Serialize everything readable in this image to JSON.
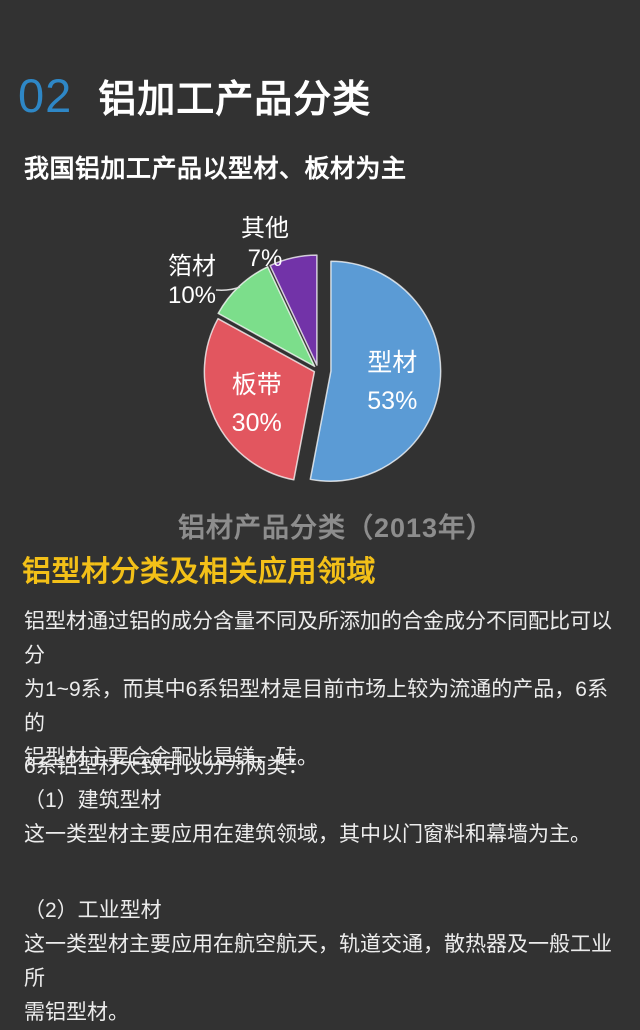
{
  "page": {
    "section_number": "02",
    "section_title": "铝加工产品分类",
    "subtitle": "我国铝加工产品以型材、板材为主"
  },
  "chart_data": {
    "type": "pie",
    "title": "铝材产品分类（2013年）",
    "categories": [
      "型材",
      "板带",
      "箔材",
      "其他"
    ],
    "values": [
      53,
      30,
      10,
      7
    ],
    "unit": "%",
    "colors": [
      "#5B9BD5",
      "#E2565F",
      "#7CDE8B",
      "#7233A8"
    ],
    "start_angle": "12 o'clock, clockwise",
    "legend_position": "none",
    "label_style": "large slices labeled inside, small slices (箔材/其他) labeled outside with leader line",
    "exploded": true,
    "background": "#323232"
  },
  "article": {
    "heading": "铝型材分类及相关应用领域",
    "heading_color": "#F3C018",
    "paragraph1": "铝型材通过铝的成分含量不同及所添加的合金成分不同配比可以分\n为1~9系，而其中6系铝型材是目前市场上较为流通的产品，6系的\n铝型材主要合金配比是镁，硅。",
    "paragraph2_intro": "6系铝型材大致可以分为两类：",
    "item1_title": "（1）建筑型材",
    "item1_desc": "这一类型材主要应用在建筑领域，其中以门窗料和幕墙为主。",
    "item2_title": "（2）工业型材",
    "item2_desc": "这一类型材主要应用在航空航天，轨道交通，散热器及一般工业所\n需铝型材。"
  }
}
